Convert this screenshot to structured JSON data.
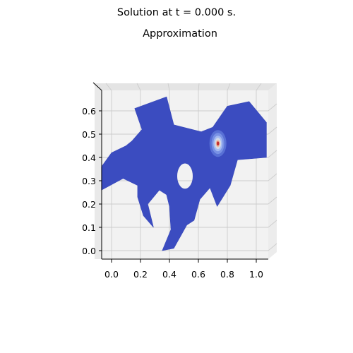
{
  "figure": {
    "suptitle": "Solution at t = 0.000 s.",
    "title": "Approximation"
  },
  "chart_data": {
    "type": "surface",
    "xlim": [
      -0.07,
      1.08
    ],
    "ylim": [
      -0.04,
      0.68
    ],
    "x_ticks": [
      "0.0",
      "0.2",
      "0.4",
      "0.6",
      "0.8",
      "1.0"
    ],
    "y_ticks": [
      "0.0",
      "0.1",
      "0.2",
      "0.3",
      "0.4",
      "0.5",
      "0.6"
    ],
    "x_tick_values": [
      0.0,
      0.2,
      0.4,
      0.6,
      0.8,
      1.0
    ],
    "y_tick_values": [
      0.0,
      0.1,
      0.2,
      0.3,
      0.4,
      0.5,
      0.6
    ],
    "grid": true,
    "colormap": "coolwarm",
    "colors": {
      "domain_fill": "#3b4cc0",
      "peak": "#c0282d",
      "pane": "#f2f2f2",
      "grid": "#cccccc"
    },
    "domain_outline": [
      [
        0.16,
        0.61
      ],
      [
        0.38,
        0.66
      ],
      [
        0.43,
        0.54
      ],
      [
        0.62,
        0.51
      ],
      [
        0.7,
        0.53
      ],
      [
        0.8,
        0.62
      ],
      [
        0.95,
        0.64
      ],
      [
        1.07,
        0.55
      ],
      [
        1.07,
        0.4
      ],
      [
        0.87,
        0.39
      ],
      [
        0.82,
        0.28
      ],
      [
        0.73,
        0.19
      ],
      [
        0.68,
        0.27
      ],
      [
        0.61,
        0.22
      ],
      [
        0.57,
        0.13
      ],
      [
        0.52,
        0.11
      ],
      [
        0.43,
        0.01
      ],
      [
        0.35,
        0.0
      ],
      [
        0.41,
        0.09
      ],
      [
        0.4,
        0.19
      ],
      [
        0.38,
        0.24
      ],
      [
        0.33,
        0.26
      ],
      [
        0.25,
        0.2
      ],
      [
        0.29,
        0.1
      ],
      [
        0.22,
        0.15
      ],
      [
        0.18,
        0.23
      ],
      [
        0.18,
        0.28
      ],
      [
        0.08,
        0.31
      ],
      [
        -0.07,
        0.26
      ],
      [
        -0.07,
        0.36
      ],
      [
        0.0,
        0.42
      ],
      [
        0.1,
        0.45
      ],
      [
        0.14,
        0.47
      ],
      [
        0.21,
        0.52
      ]
    ],
    "hole": {
      "cx": 0.507,
      "cy": 0.32,
      "rx": 0.055,
      "ry": 0.055
    },
    "peak": {
      "x": 0.735,
      "y": 0.46,
      "value_max": 1.0,
      "value_min": 0.0
    }
  }
}
